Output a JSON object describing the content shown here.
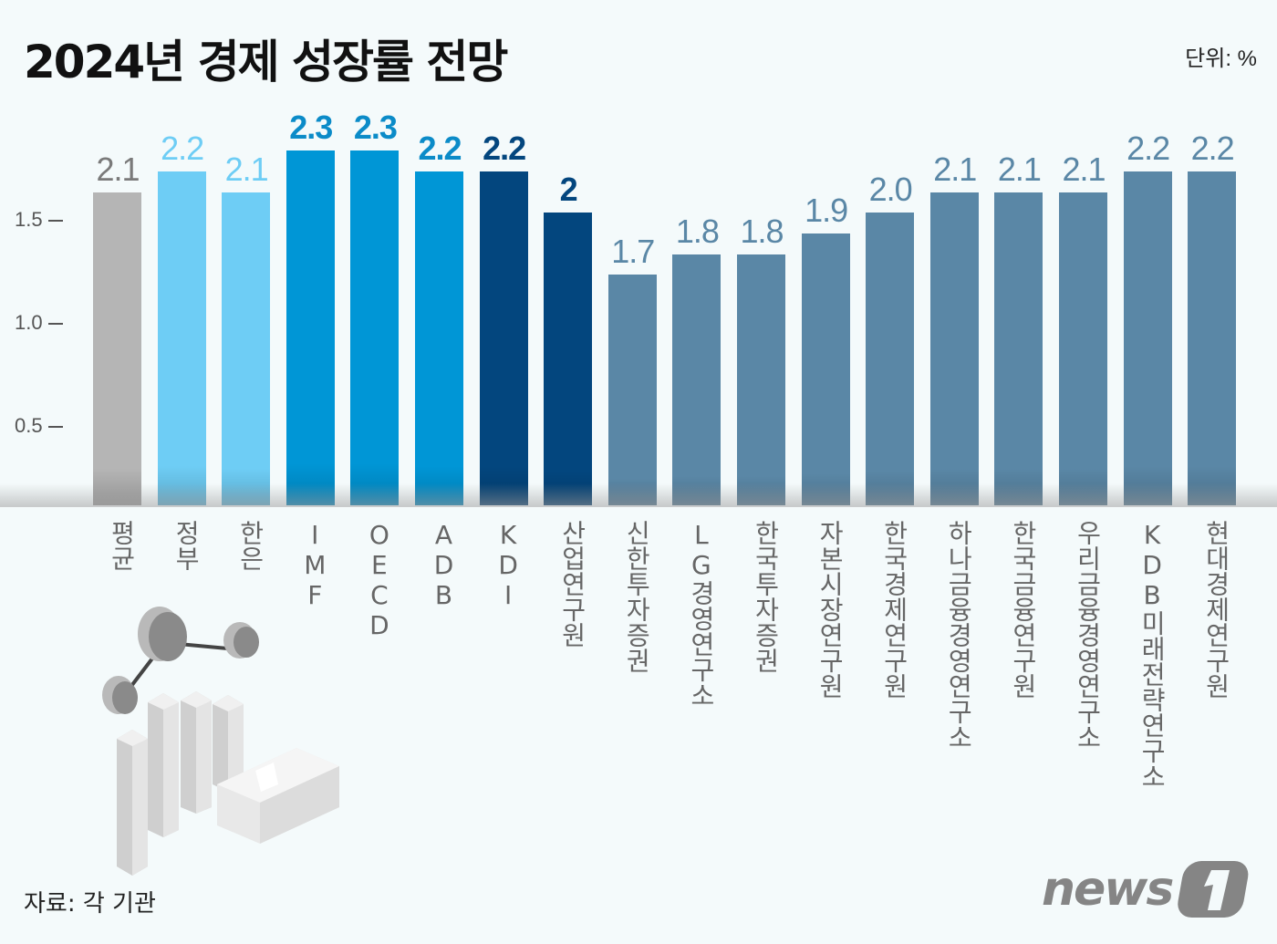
{
  "header": {
    "title": "2024년 경제 성장률 전망",
    "unit": "단위: %"
  },
  "footer": {
    "source": "자료: 각 기관",
    "logo_text": "news1"
  },
  "y_axis": {
    "ticks": [
      "1.5",
      "1.0",
      "0.5"
    ]
  },
  "colors": {
    "average": "#b5b5b5",
    "domestic_light": "#6ecdf5",
    "intl": "#0096d6",
    "kdi": "#03467e",
    "private": "#5a87a6",
    "average_text": "#7a7a7a",
    "private_text": "#5a87a6"
  },
  "bars": [
    {
      "label": "평균",
      "value": "2.1",
      "color": "#b5b5b5",
      "text_color": "#7a7a7a"
    },
    {
      "label": "정부",
      "value": "2.2",
      "color": "#6ecdf5",
      "text_color": "#6ecdf5"
    },
    {
      "label": "한은",
      "value": "2.1",
      "color": "#6ecdf5",
      "text_color": "#6ecdf5"
    },
    {
      "label": "IMF",
      "value": "2.3",
      "color": "#0096d6",
      "text_color": "#0b8bc8"
    },
    {
      "label": "OECD",
      "value": "2.3",
      "color": "#0096d6",
      "text_color": "#0b8bc8"
    },
    {
      "label": "ADB",
      "value": "2.2",
      "color": "#0096d6",
      "text_color": "#0b8bc8"
    },
    {
      "label": "KDI",
      "value": "2.2",
      "color": "#03467e",
      "text_color": "#03467e"
    },
    {
      "label": "산업연구원",
      "value": "2",
      "color": "#03467e",
      "text_color": "#03467e"
    },
    {
      "label": "신한투자증권",
      "value": "1.7",
      "color": "#5a87a6",
      "text_color": "#5a87a6"
    },
    {
      "label": "LG경영연구소",
      "value": "1.8",
      "color": "#5a87a6",
      "text_color": "#5a87a6"
    },
    {
      "label": "한국투자증권",
      "value": "1.8",
      "color": "#5a87a6",
      "text_color": "#5a87a6"
    },
    {
      "label": "자본시장연구원",
      "value": "1.9",
      "color": "#5a87a6",
      "text_color": "#5a87a6"
    },
    {
      "label": "한국경제연구원",
      "value": "2.0",
      "color": "#5a87a6",
      "text_color": "#5a87a6"
    },
    {
      "label": "하나금융경영연구소",
      "value": "2.1",
      "color": "#5a87a6",
      "text_color": "#5a87a6"
    },
    {
      "label": "한국금융연구원",
      "value": "2.1",
      "color": "#5a87a6",
      "text_color": "#5a87a6"
    },
    {
      "label": "우리금융경영연구소",
      "value": "2.1",
      "color": "#5a87a6",
      "text_color": "#5a87a6"
    },
    {
      "label": "KDB미래전략연구소",
      "value": "2.2",
      "color": "#5a87a6",
      "text_color": "#5a87a6"
    },
    {
      "label": "현대경제연구원",
      "value": "2.2",
      "color": "#5a87a6",
      "text_color": "#5a87a6"
    }
  ],
  "chart_data": {
    "type": "bar",
    "title": "2024년 경제 성장률 전망",
    "xlabel": "",
    "ylabel": "단위: %",
    "categories": [
      "평균",
      "정부",
      "한은",
      "IMF",
      "OECD",
      "ADB",
      "KDI",
      "산업연구원",
      "신한투자증권",
      "LG경영연구소",
      "한국투자증권",
      "자본시장연구원",
      "한국경제연구원",
      "하나금융경영연구소",
      "한국금융연구원",
      "우리금융경영연구소",
      "KDB미래전략연구소",
      "현대경제연구원"
    ],
    "values": [
      2.1,
      2.2,
      2.1,
      2.3,
      2.3,
      2.2,
      2.2,
      2.0,
      1.7,
      1.8,
      1.8,
      1.9,
      2.0,
      2.1,
      2.1,
      2.1,
      2.2,
      2.2
    ],
    "y_ticks": [
      0.5,
      1.0,
      1.5
    ],
    "grid": false,
    "legend": null,
    "annotations": [
      "단위: %",
      "자료: 각 기관"
    ]
  }
}
